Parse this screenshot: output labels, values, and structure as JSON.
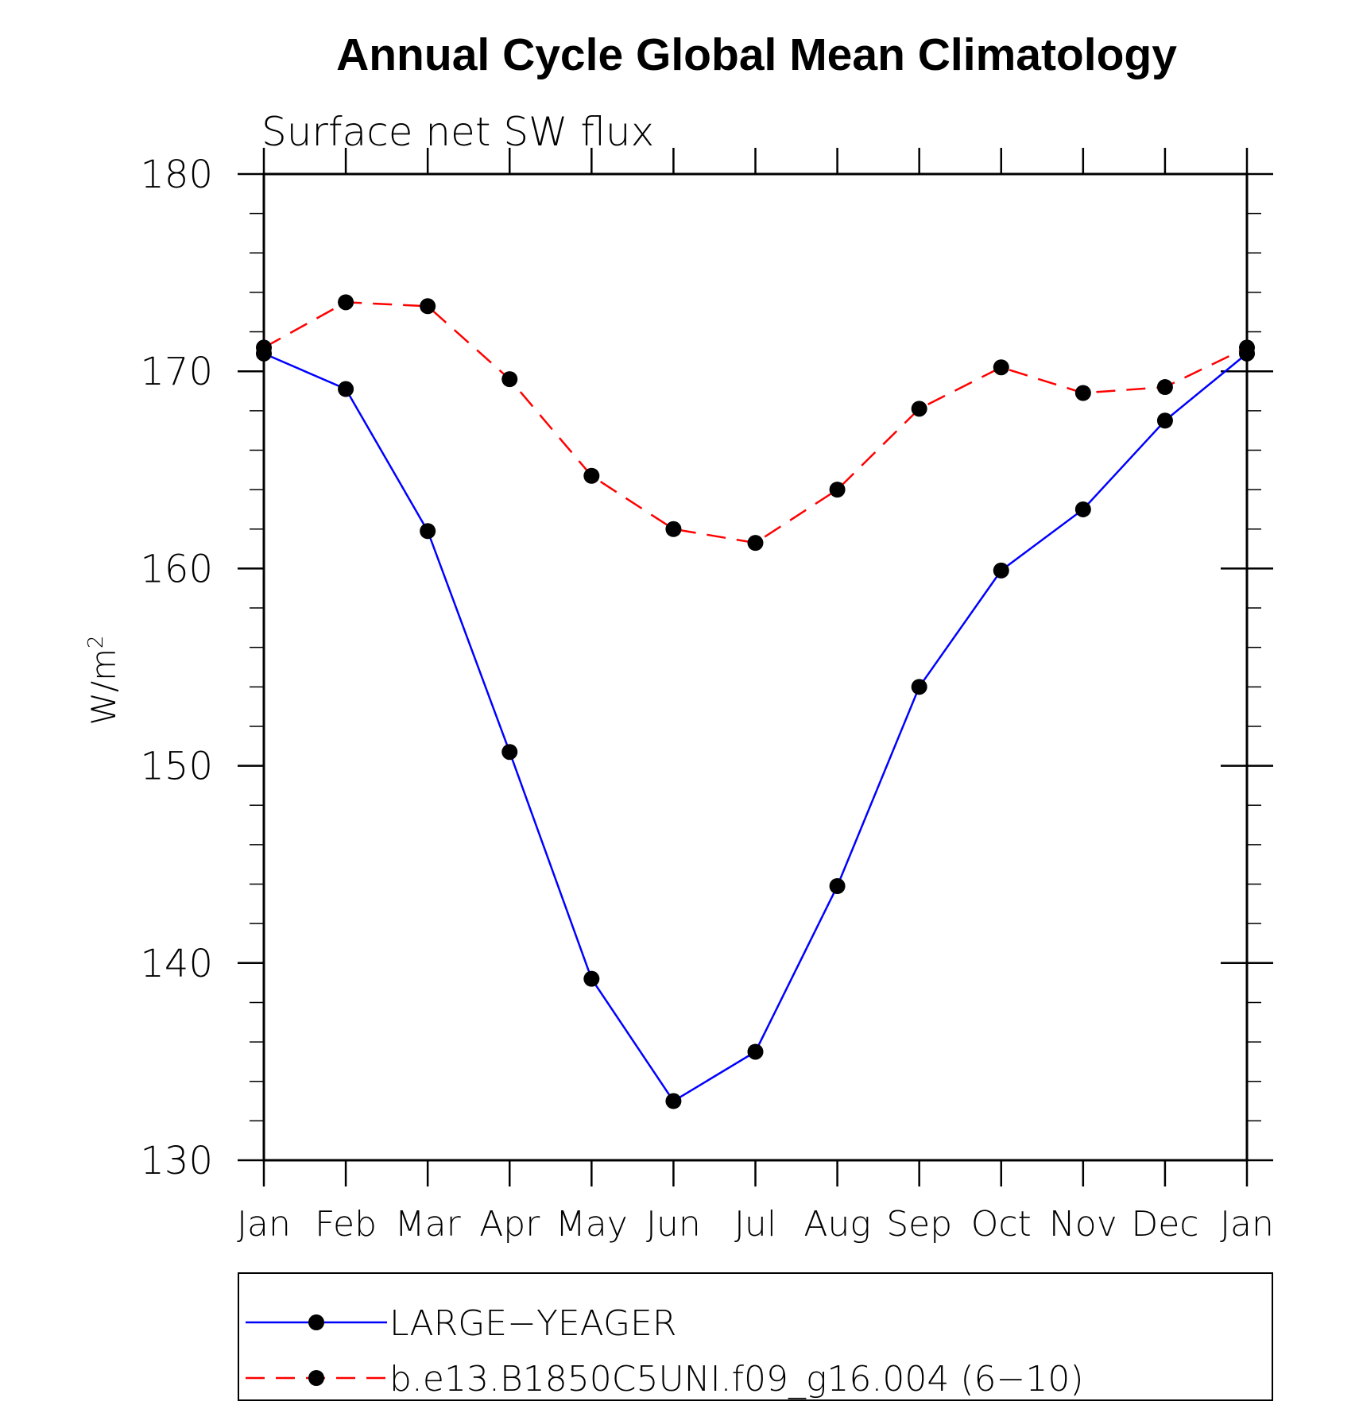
{
  "chart_data": {
    "type": "line",
    "title": "Annual Cycle Global Mean Climatology",
    "subtitle": "Surface net SW flux",
    "ylabel_base": "W/m",
    "ylabel_sup": "2",
    "xlabel": "",
    "categories": [
      "Jan",
      "Feb",
      "Mar",
      "Apr",
      "May",
      "Jun",
      "Jul",
      "Aug",
      "Sep",
      "Oct",
      "Nov",
      "Dec",
      "Jan"
    ],
    "ylim": [
      130,
      180
    ],
    "yticks": [
      "130",
      "140",
      "150",
      "160",
      "170",
      "180"
    ],
    "series": [
      {
        "name": "LARGE−YEAGER",
        "color": "#0000ff",
        "dash": "solid",
        "values": [
          170.9,
          169.1,
          161.9,
          150.7,
          139.2,
          133.0,
          135.5,
          143.9,
          154.0,
          159.9,
          163.0,
          167.5,
          170.9
        ]
      },
      {
        "name": "b.e13.B1850C5UNI.f09_g16.004 (6−10)",
        "color": "#ff0000",
        "dash": "dashed",
        "values": [
          171.2,
          173.5,
          173.3,
          169.6,
          164.7,
          162.0,
          161.3,
          164.0,
          168.1,
          170.2,
          168.9,
          169.2,
          171.2
        ]
      }
    ],
    "grid": false,
    "legend_position": "bottom",
    "marker": "filled-circle",
    "marker_color": "#000000"
  }
}
